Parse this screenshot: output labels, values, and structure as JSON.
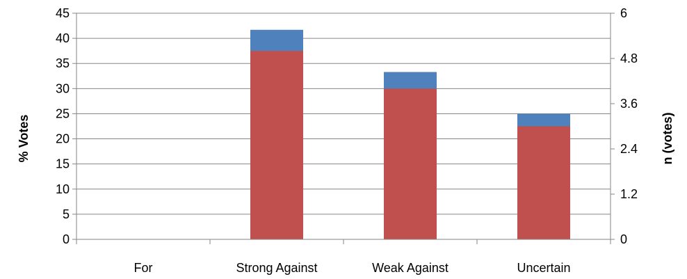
{
  "chart_data": {
    "type": "bar",
    "categories": [
      "For",
      "Strong Against",
      "Weak Against",
      "Uncertain"
    ],
    "series": [
      {
        "axis": "left",
        "values": [
          0,
          41.7,
          33.3,
          25.0
        ],
        "color": "#4F81BD"
      },
      {
        "axis": "right",
        "values": [
          0,
          5,
          4,
          3
        ],
        "color": "#C0504D"
      }
    ],
    "title": "",
    "ylabel": "% Votes",
    "y2label": "n (votes)",
    "ylim": [
      0,
      45
    ],
    "y2lim": [
      0,
      6
    ],
    "yticks": [
      "0",
      "5",
      "10",
      "15",
      "20",
      "25",
      "30",
      "35",
      "40",
      "45"
    ],
    "y2ticks": [
      "0",
      "1.2",
      "2.4",
      "3.6",
      "4.8",
      "6"
    ],
    "grid": true,
    "legend": "none",
    "colors": {
      "grid": "#868686",
      "axis": "#868686"
    }
  }
}
